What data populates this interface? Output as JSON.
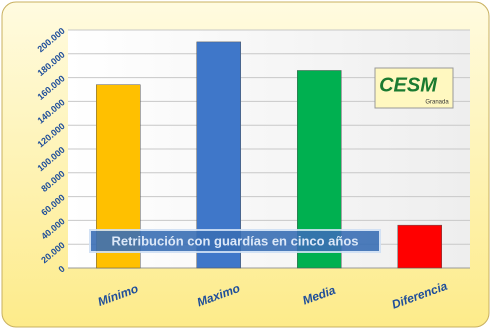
{
  "chart_data": {
    "type": "bar",
    "categories": [
      "Mínimo",
      "Maximo",
      "Media",
      "Diferencia"
    ],
    "values": [
      154000,
      190000,
      166000,
      36000
    ],
    "colors": [
      "#ffc000",
      "#3f77c9",
      "#00b050",
      "#ff0000"
    ],
    "ylim": [
      0,
      200000
    ],
    "yticks": [
      0,
      {
        "value": 20000,
        "label": "20.000"
      },
      {
        "value": 40000,
        "label": "40.000"
      },
      {
        "value": 60000,
        "label": "60.000"
      },
      {
        "value": 80000,
        "label": "80.000"
      },
      {
        "value": 100000,
        "label": "100.000"
      },
      {
        "value": 120000,
        "label": "120.000"
      },
      {
        "value": 140000,
        "label": "140.000"
      },
      {
        "value": 160000,
        "label": "160.000"
      },
      {
        "value": 180000,
        "label": "180.000"
      },
      {
        "value": 200000,
        "label": "200.000"
      }
    ],
    "grid": true,
    "annotation": "Retribución con guardías en cinco años",
    "logo": {
      "text": "CESM",
      "subtext": "Granada"
    }
  }
}
